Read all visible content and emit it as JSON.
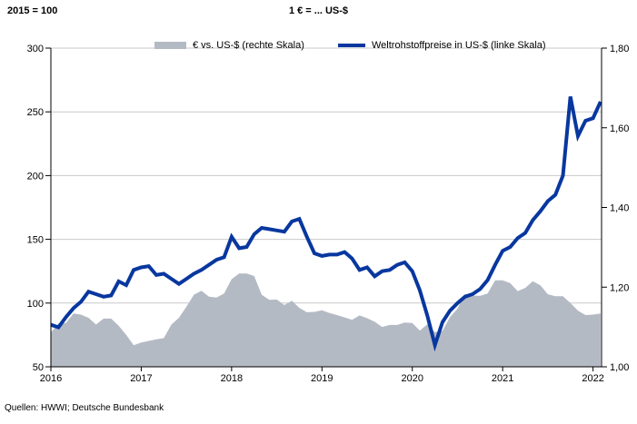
{
  "header": {
    "left_scale": "2015 = 100",
    "right_scale": "1 € = ... US-$"
  },
  "legend": [
    {
      "label": "€ vs. US-$ (rechte Skala)",
      "swatch": "gray-area",
      "color": "#b4bac4"
    },
    {
      "label": "Weltrohstoffpreise in US-$ (linke Skala)",
      "swatch": "blue-line",
      "color": "#08379f"
    }
  ],
  "source": "Quellen: HWWI; Deutsche Bundesbank",
  "chart_data": {
    "type": "line",
    "x": {
      "start": "2016-01",
      "freq": "monthly",
      "n_points": 74,
      "year_tick_labels": [
        "2016",
        "2017",
        "2018",
        "2019",
        "2020",
        "2021",
        "2022"
      ]
    },
    "left_axis": {
      "min": 50,
      "max": 300,
      "title": "2015 = 100",
      "ticks": [
        {
          "v": 300,
          "label": "300"
        },
        {
          "v": 250,
          "label": "250"
        },
        {
          "v": 200,
          "label": "200"
        },
        {
          "v": 150,
          "label": "150"
        },
        {
          "v": 100,
          "label": "100"
        },
        {
          "v": 50,
          "label": "50"
        }
      ]
    },
    "right_axis": {
      "min": 1.0,
      "max": 1.8,
      "title": "1 € = ... US-$",
      "ticks": [
        {
          "v": 1.8,
          "label": "1,80"
        },
        {
          "v": 1.6,
          "label": "1,60"
        },
        {
          "v": 1.4,
          "label": "1,40"
        },
        {
          "v": 1.2,
          "label": "1,20"
        },
        {
          "v": 1.0,
          "label": "1,00"
        }
      ]
    },
    "grid": true,
    "gridline_left_values": [
      100,
      150,
      200,
      250,
      300
    ],
    "legend_position": "top",
    "series": [
      {
        "name": "Weltrohstoffpreise in US-$ (linke Skala)",
        "type": "line",
        "axis": "left",
        "color": "#08379f",
        "values": [
          83,
          81,
          89,
          96,
          101,
          109,
          107,
          105,
          106,
          117,
          114,
          126,
          128,
          129,
          122,
          123,
          119,
          115,
          119,
          123,
          126,
          130,
          134,
          136,
          152,
          143,
          144,
          154,
          159,
          158,
          157,
          156,
          164,
          166,
          152,
          139,
          137,
          138,
          138,
          140,
          135,
          126,
          128,
          121,
          125,
          126,
          130,
          132,
          125,
          110,
          90,
          67,
          85,
          94,
          100,
          105,
          107,
          111,
          118,
          130,
          141,
          144,
          151,
          155,
          165,
          172,
          180,
          185,
          200,
          262,
          231,
          243,
          245,
          258
        ]
      },
      {
        "name": "€ vs. US-$ (rechte Skala)",
        "type": "area",
        "axis": "right",
        "color": "#b4bac4",
        "values": [
          1.086,
          1.109,
          1.11,
          1.134,
          1.131,
          1.123,
          1.106,
          1.121,
          1.121,
          1.103,
          1.08,
          1.054,
          1.061,
          1.065,
          1.069,
          1.072,
          1.106,
          1.123,
          1.151,
          1.181,
          1.191,
          1.176,
          1.174,
          1.184,
          1.22,
          1.234,
          1.234,
          1.228,
          1.181,
          1.168,
          1.169,
          1.155,
          1.166,
          1.148,
          1.137,
          1.138,
          1.142,
          1.135,
          1.13,
          1.124,
          1.118,
          1.129,
          1.122,
          1.113,
          1.1,
          1.105,
          1.105,
          1.111,
          1.11,
          1.091,
          1.107,
          1.087,
          1.09,
          1.125,
          1.146,
          1.183,
          1.179,
          1.178,
          1.184,
          1.217,
          1.217,
          1.21,
          1.19,
          1.198,
          1.215,
          1.205,
          1.182,
          1.177,
          1.177,
          1.16,
          1.141,
          1.13,
          1.131,
          1.134
        ]
      }
    ]
  }
}
